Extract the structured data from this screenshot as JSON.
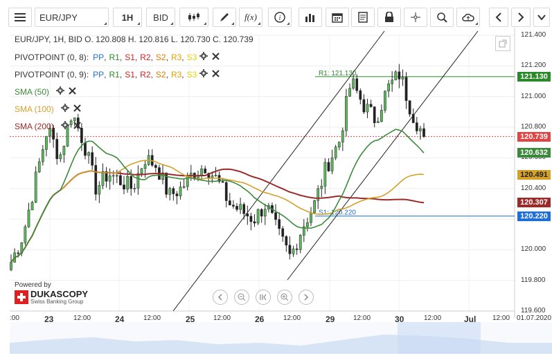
{
  "toolbar": {
    "symbol": "EUR/JPY",
    "timeframe": "1H",
    "price_type": "BID"
  },
  "ohlc": {
    "line": "EUR/JPY, 1H, BID   O. 120.808 H. 120.816 L. 120.730 C. 120.739"
  },
  "indicators": [
    {
      "name": "PIVOTPOINT (0, 8)",
      "params": [
        "PP",
        "R1",
        "S1",
        "R2",
        "S2",
        "R3",
        "S3"
      ]
    },
    {
      "name": "PIVOTPOINT (0, 9)",
      "params": [
        "PP",
        "R1",
        "S1",
        "R2",
        "S2",
        "R3",
        "S3"
      ]
    },
    {
      "name": "SMA (50)",
      "color": "#3b8a3b"
    },
    {
      "name": "SMA (100)",
      "color": "#d4a02a"
    },
    {
      "name": "SMA (200)",
      "color": "#9b2a2a"
    }
  ],
  "colors": {
    "pp": "#1e6fd9",
    "r1": "#2a8a2a",
    "s1": "#d62020",
    "r2": "#d62020",
    "s2": "#e07a00",
    "r3": "#e0a000",
    "s3": "#e8d000",
    "sma50": "#3b8a3b",
    "sma100": "#d4a02a",
    "sma200": "#9b2a2a",
    "current": "#e04444"
  },
  "y_axis": {
    "ticks": [
      "121.400",
      "121.200",
      "121.000",
      "120.800",
      "120.600",
      "120.400",
      "120.200",
      "120.000",
      "119.800",
      "119.600"
    ]
  },
  "price_labels": {
    "r1": "121.130",
    "current": "120.739",
    "sma50": "120.632",
    "sma100": "120.491",
    "sma200": "120.307",
    "s1": "120.220"
  },
  "chart_labels": {
    "r1": "R1: 121.130",
    "s1": "S1: 120.220"
  },
  "x_axis": {
    "ticks": [
      ":00",
      "23",
      "12:00",
      "24",
      "12:00",
      "25",
      "12:00",
      "26",
      "12:00",
      "29",
      "12:00",
      "30",
      "12:00",
      "Jul",
      "12:00",
      "01.07.2020"
    ]
  },
  "branding": {
    "powered_by": "Powered by",
    "company": "DUKASCOPY",
    "subtitle": "Swiss Banking Group"
  },
  "chart_data": {
    "type": "candlestick",
    "symbol": "EUR/JPY",
    "timeframe": "1H",
    "ylim": [
      119.6,
      121.45
    ],
    "last": {
      "open": 120.808,
      "high": 120.816,
      "low": 120.73,
      "close": 120.739
    },
    "levels": {
      "R1": 121.13,
      "S1": 120.22
    },
    "sma": {
      "SMA50": 120.632,
      "SMA100": 120.491,
      "SMA200": 120.307
    },
    "x_labels": [
      ":00",
      "23",
      "12:00",
      "24",
      "12:00",
      "25",
      "12:00",
      "26",
      "12:00",
      "29",
      "12:00",
      "30",
      "12:00",
      "Jul",
      "12:00",
      "01.07.2020"
    ],
    "closes": [
      119.92,
      120.1,
      120.45,
      120.8,
      120.6,
      120.9,
      120.7,
      120.4,
      120.5,
      120.45,
      120.4,
      120.6,
      120.55,
      120.35,
      120.4,
      120.5,
      120.55,
      120.45,
      120.3,
      120.25,
      120.2,
      120.3,
      120.1,
      119.95,
      120.15,
      120.3,
      120.55,
      120.7,
      121.1,
      120.95,
      120.85,
      121.05,
      121.15,
      120.9,
      120.74
    ]
  }
}
